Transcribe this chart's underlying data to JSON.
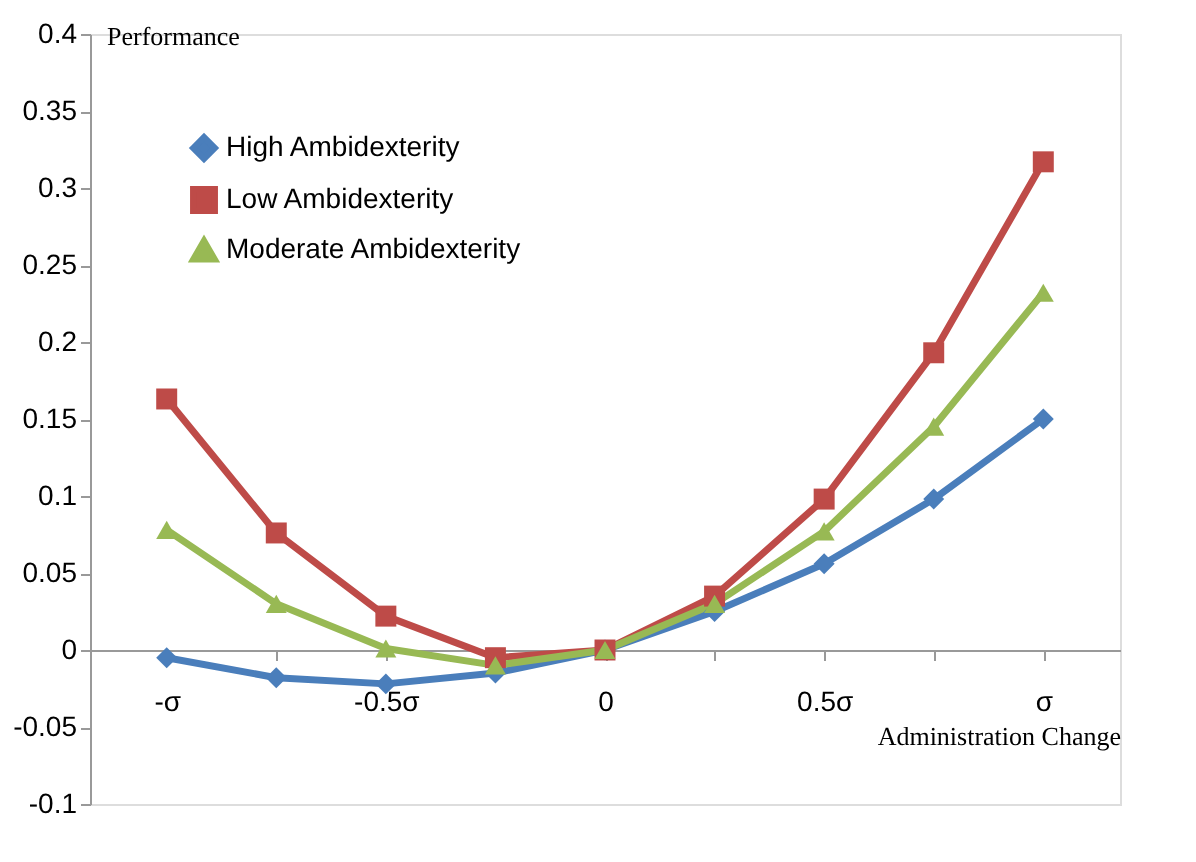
{
  "chart_data": {
    "type": "line",
    "ylabel": "Performance",
    "xlabel": "Administration  Change",
    "categories": [
      "-σ",
      null,
      "-0.5σ",
      null,
      "0",
      null,
      "0.5σ",
      null,
      "σ"
    ],
    "series": [
      {
        "name": "High Ambidexterity",
        "color": "#4a7ebb",
        "marker": "diamond",
        "values": [
          -0.005,
          -0.018,
          -0.022,
          -0.015,
          0,
          0.025,
          0.056,
          0.098,
          0.15
        ]
      },
      {
        "name": "Low Ambidexterity",
        "color": "#be4b48",
        "marker": "square",
        "values": [
          0.163,
          0.076,
          0.022,
          -0.005,
          0,
          0.035,
          0.098,
          0.193,
          0.317
        ]
      },
      {
        "name": "Moderate Ambidexterity",
        "color": "#98b954",
        "marker": "triangle",
        "values": [
          0.078,
          0.03,
          0.001,
          -0.01,
          0,
          0.03,
          0.077,
          0.145,
          0.232
        ]
      }
    ],
    "ylim": [
      -0.1,
      0.4
    ],
    "yticks": [
      -0.1,
      -0.05,
      0,
      0.05,
      0.1,
      0.15,
      0.2,
      0.25,
      0.3,
      0.35,
      0.4
    ],
    "grid": false,
    "legend": "top left",
    "line_style": "solid"
  }
}
